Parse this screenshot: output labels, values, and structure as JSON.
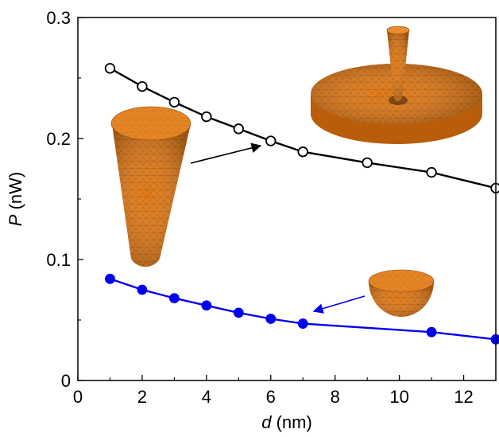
{
  "chart_data": {
    "type": "line",
    "xlabel": {
      "var": "d",
      "unit": " (nm)"
    },
    "ylabel": {
      "var": "P",
      "unit": " (nW)"
    },
    "xlim": [
      0,
      13
    ],
    "ylim": [
      0,
      0.3
    ],
    "xticks": [
      "0",
      "2",
      "4",
      "6",
      "8",
      "10",
      "12"
    ],
    "yticks": [
      "0",
      "0.1",
      "0.2",
      "0.3"
    ],
    "grid": false,
    "legend": "none",
    "series": [
      {
        "marker": "open-circle",
        "color": "#000000",
        "x": [
          1,
          2,
          3,
          4,
          5,
          6,
          7,
          9,
          11,
          13
        ],
        "y": [
          0.258,
          0.243,
          0.23,
          0.218,
          0.208,
          0.198,
          0.189,
          0.18,
          0.172,
          0.159
        ]
      },
      {
        "marker": "filled-circle",
        "color": "#0000ee",
        "x": [
          1,
          2,
          3,
          4,
          5,
          6,
          7,
          11,
          13
        ],
        "y": [
          0.084,
          0.075,
          0.068,
          0.062,
          0.056,
          0.051,
          0.047,
          0.04,
          0.034
        ]
      }
    ],
    "insets": [
      {
        "icon": "cone-tip-on-disk-icon",
        "mesh_color": "#e07b1a"
      },
      {
        "icon": "cone-tip-icon",
        "mesh_color": "#e07b1a"
      },
      {
        "icon": "hemisphere-icon",
        "mesh_color": "#e07b1a"
      }
    ]
  }
}
